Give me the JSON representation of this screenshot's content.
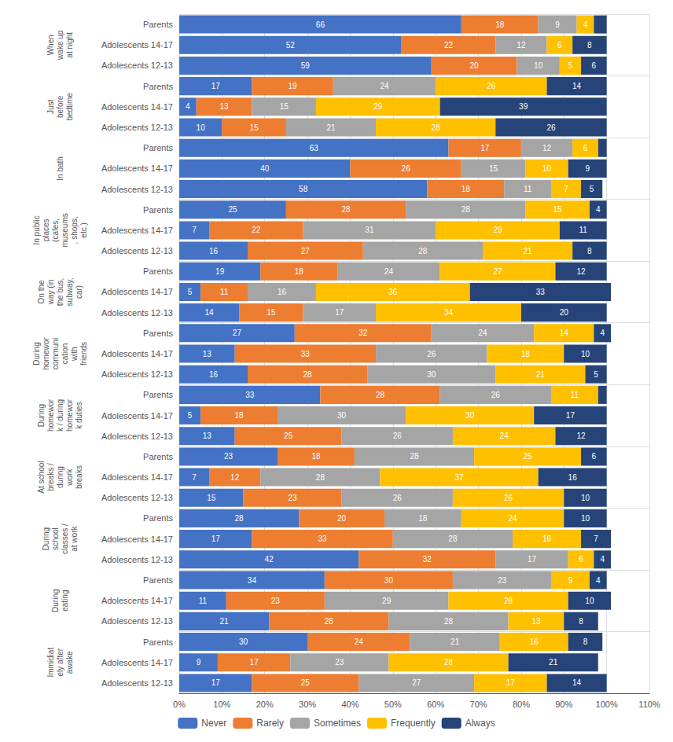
{
  "chart_data": {
    "type": "bar",
    "orientation": "horizontal",
    "stacked": true,
    "data_labels": true,
    "grid": true,
    "legend": "bottom",
    "groups": [
      {
        "label": [
          "When",
          "wake up",
          "at night"
        ],
        "categories": [
          "Parents",
          "Adolescents 14-17",
          "Adolescents 12-13"
        ]
      },
      {
        "label": [
          "Just",
          "before",
          "bedtime"
        ],
        "categories": [
          "Parents",
          "Adolescents 14-17",
          "Adolescents 12-13"
        ]
      },
      {
        "label": [
          "In bath"
        ],
        "categories": [
          "Parents",
          "Adolescents 14-17",
          "Adolescents 12-13"
        ]
      },
      {
        "label": [
          "In public",
          "places",
          "(cafes,",
          "museums",
          ", shops,",
          "etc.)"
        ],
        "categories": [
          "Parents",
          "Adolescents 14-17",
          "Adolescents 12-13"
        ]
      },
      {
        "label": [
          "On the",
          "way (in",
          "the bus,",
          "subway,",
          "car)"
        ],
        "categories": [
          "Parents",
          "Adolescents 14-17",
          "Adolescents 12-13"
        ]
      },
      {
        "label": [
          "During",
          "homewor",
          "communi",
          "cation",
          "with",
          "friends"
        ],
        "categories": [
          "Parents",
          "Adolescents 14-17",
          "Adolescents 12-13"
        ]
      },
      {
        "label": [
          "During",
          "homewor",
          "k / during",
          "homewor",
          "k duties"
        ],
        "categories": [
          "Parents",
          "Adolescents 14-17",
          "Adolescents 12-13"
        ]
      },
      {
        "label": [
          "At school",
          "breaks /",
          "during",
          "work",
          "breaks"
        ],
        "categories": [
          "Parents",
          "Adolescents 14-17",
          "Adolescents 12-13"
        ]
      },
      {
        "label": [
          "During",
          "school",
          "classes /",
          "at work"
        ],
        "categories": [
          "Parents",
          "Adolescents 14-17",
          "Adolescents 12-13"
        ]
      },
      {
        "label": [
          "During",
          "eating"
        ],
        "categories": [
          "Parents",
          "Adolescents 14-17",
          "Adolescents 12-13"
        ]
      },
      {
        "label": [
          "Immidiat",
          "ely after",
          "awake"
        ],
        "categories": [
          "Parents",
          "Adolescents 14-17",
          "Adolescents 12-13"
        ]
      }
    ],
    "series": [
      {
        "name": "Never",
        "color": "#4472c4",
        "values": [
          66,
          52,
          59,
          17,
          4,
          10,
          63,
          40,
          58,
          25,
          7,
          16,
          19,
          5,
          14,
          27,
          13,
          16,
          33,
          5,
          13,
          23,
          7,
          15,
          28,
          17,
          42,
          34,
          11,
          21,
          30,
          9,
          17
        ]
      },
      {
        "name": "Rarely",
        "color": "#ed7d31",
        "values": [
          18,
          22,
          20,
          19,
          13,
          15,
          17,
          26,
          18,
          28,
          22,
          27,
          18,
          11,
          15,
          32,
          33,
          28,
          28,
          18,
          25,
          18,
          12,
          23,
          20,
          33,
          32,
          30,
          23,
          28,
          24,
          17,
          25
        ]
      },
      {
        "name": "Sometimes",
        "color": "#a5a5a5",
        "values": [
          9,
          12,
          10,
          24,
          15,
          21,
          12,
          15,
          11,
          28,
          31,
          28,
          24,
          16,
          17,
          24,
          26,
          30,
          26,
          30,
          26,
          28,
          28,
          26,
          18,
          28,
          17,
          23,
          29,
          28,
          21,
          23,
          27
        ]
      },
      {
        "name": "Frequently",
        "color": "#ffc000",
        "values": [
          4,
          6,
          5,
          26,
          29,
          28,
          6,
          10,
          7,
          15,
          29,
          21,
          27,
          36,
          34,
          14,
          18,
          21,
          11,
          30,
          24,
          25,
          37,
          26,
          24,
          16,
          6,
          9,
          28,
          13,
          16,
          28,
          17
        ]
      },
      {
        "name": "Always",
        "color": "#264478",
        "values": [
          3,
          8,
          6,
          14,
          39,
          26,
          2,
          9,
          5,
          4,
          11,
          8,
          12,
          33,
          20,
          4,
          10,
          5,
          2,
          17,
          12,
          6,
          16,
          10,
          10,
          7,
          4,
          4,
          10,
          8,
          8,
          21,
          14
        ],
        "value_labels": [
          null,
          "8",
          "6",
          "14",
          "39",
          "26",
          null,
          "9",
          "5",
          "4",
          "11",
          "8",
          "12",
          "33",
          "20",
          "4",
          "10",
          "5",
          null,
          "17",
          "12",
          "6",
          "16",
          "10",
          "10",
          "7",
          "4",
          "4",
          "10",
          "8",
          "8",
          "21",
          "14"
        ]
      }
    ],
    "xlim": [
      0,
      110
    ],
    "xticks": [
      {
        "value": 0,
        "label": "0%"
      },
      {
        "value": 10,
        "label": "10%"
      },
      {
        "value": 20,
        "label": "20%"
      },
      {
        "value": 30,
        "label": "30%"
      },
      {
        "value": 40,
        "label": "40%"
      },
      {
        "value": 50,
        "label": "50%"
      },
      {
        "value": 60,
        "label": "60%"
      },
      {
        "value": 70,
        "label": "70%"
      },
      {
        "value": 80,
        "label": "80%"
      },
      {
        "value": 90,
        "label": "90%"
      },
      {
        "value": 100,
        "label": "100%"
      },
      {
        "value": 110,
        "label": "110%"
      }
    ]
  }
}
